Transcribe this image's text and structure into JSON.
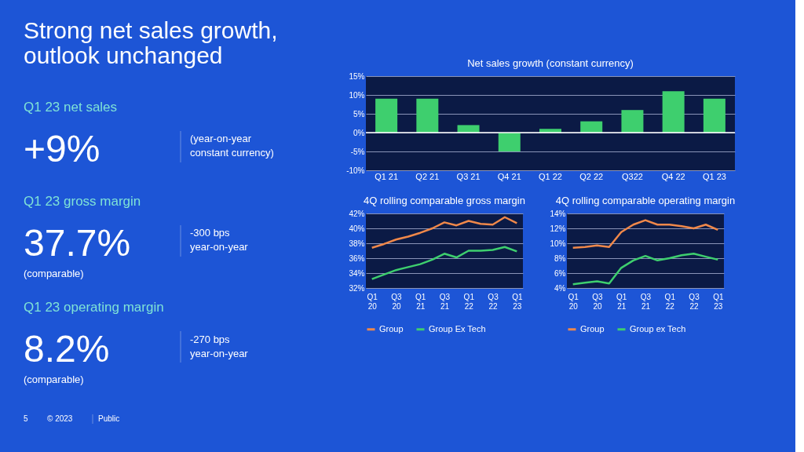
{
  "chart_data": [
    {
      "type": "other",
      "title": "Strong net sales growth, outlook unchanged",
      "annotations": [
        "Q1 23 net sales",
        "+9%",
        "(year-on-year",
        "constant currency)",
        "Q1 23 gross margin",
        "37.7%",
        "(comparable)",
        "-300 bps",
        "year-on-year",
        "Q1 23 operating margin",
        "8.2%",
        "(comparable)",
        "-270 bps",
        "year-on-year",
        "5",
        "© 2023",
        "Public"
      ]
    },
    {
      "type": "bar",
      "title": "Net sales growth (constant currency)",
      "categories": [
        "Q1 21",
        "Q2 21",
        "Q3 21",
        "Q4 21",
        "Q1 22",
        "Q2 22",
        "Q322",
        "Q4 22",
        "Q1 23"
      ],
      "values": [
        9,
        9,
        2,
        -5,
        1,
        3,
        6,
        11,
        9
      ],
      "color": "#3ecf6e",
      "ylim": [
        -10,
        15
      ],
      "yticks": [
        {
          "value": -10,
          "label": "-10%"
        },
        {
          "value": -5,
          "label": "-5%"
        },
        {
          "value": 0,
          "label": "0%"
        },
        {
          "value": 5,
          "label": "5%"
        },
        {
          "value": 10,
          "label": "10%"
        },
        {
          "value": 15,
          "label": "15%"
        }
      ],
      "grid": "y"
    },
    {
      "type": "line",
      "title": "4Q rolling comparable gross margin",
      "categories": [
        "Q1 20",
        null,
        "Q3 20",
        null,
        "Q1 21",
        null,
        "Q3 21",
        null,
        "Q1 22",
        null,
        "Q3 22",
        null,
        "Q1 23"
      ],
      "series": [
        {
          "name": "Group",
          "color": "#f0884a",
          "values": [
            37.4,
            37.9,
            38.5,
            38.9,
            39.4,
            40.0,
            40.8,
            40.4,
            41.0,
            40.6,
            40.5,
            41.5,
            40.7
          ]
        },
        {
          "name": "Group Ex Tech",
          "color": "#3ecf6e",
          "values": [
            33.2,
            33.8,
            34.4,
            34.8,
            35.2,
            35.8,
            36.6,
            36.1,
            37.0,
            37.0,
            37.1,
            37.5,
            36.9
          ]
        }
      ],
      "ylim": [
        32,
        42
      ],
      "yticks": [
        {
          "value": 32,
          "label": "32%"
        },
        {
          "value": 34,
          "label": "34%"
        },
        {
          "value": 36,
          "label": "36%"
        },
        {
          "value": 38,
          "label": "38%"
        },
        {
          "value": 40,
          "label": "40%"
        },
        {
          "value": 42,
          "label": "42%"
        }
      ],
      "grid": "y",
      "legend": "bottom",
      "marker": "none",
      "line_style": "solid"
    },
    {
      "type": "line",
      "title": "4Q rolling  comparable operating margin",
      "categories": [
        "Q1 20",
        null,
        "Q3 20",
        null,
        "Q1 21",
        null,
        "Q3 21",
        null,
        "Q1 22",
        null,
        "Q3 22",
        null,
        "Q1 23"
      ],
      "series": [
        {
          "name": "Group",
          "color": "#f0884a",
          "values": [
            9.4,
            9.5,
            9.7,
            9.5,
            11.5,
            12.5,
            13.1,
            12.5,
            12.5,
            12.3,
            12.0,
            12.5,
            11.8
          ]
        },
        {
          "name": "Group ex Tech",
          "color": "#3ecf6e",
          "values": [
            4.5,
            4.7,
            4.9,
            4.6,
            6.7,
            7.7,
            8.3,
            7.7,
            8.0,
            8.4,
            8.6,
            8.2,
            7.8
          ]
        }
      ],
      "ylim": [
        4,
        14
      ],
      "yticks": [
        {
          "value": 4,
          "label": "4%"
        },
        {
          "value": 6,
          "label": "6%"
        },
        {
          "value": 8,
          "label": "8%"
        },
        {
          "value": 10,
          "label": "10%"
        },
        {
          "value": 12,
          "label": "12%"
        },
        {
          "value": 14,
          "label": "14%"
        }
      ],
      "grid": "y",
      "legend": "bottom",
      "marker": "none",
      "line_style": "solid"
    }
  ]
}
